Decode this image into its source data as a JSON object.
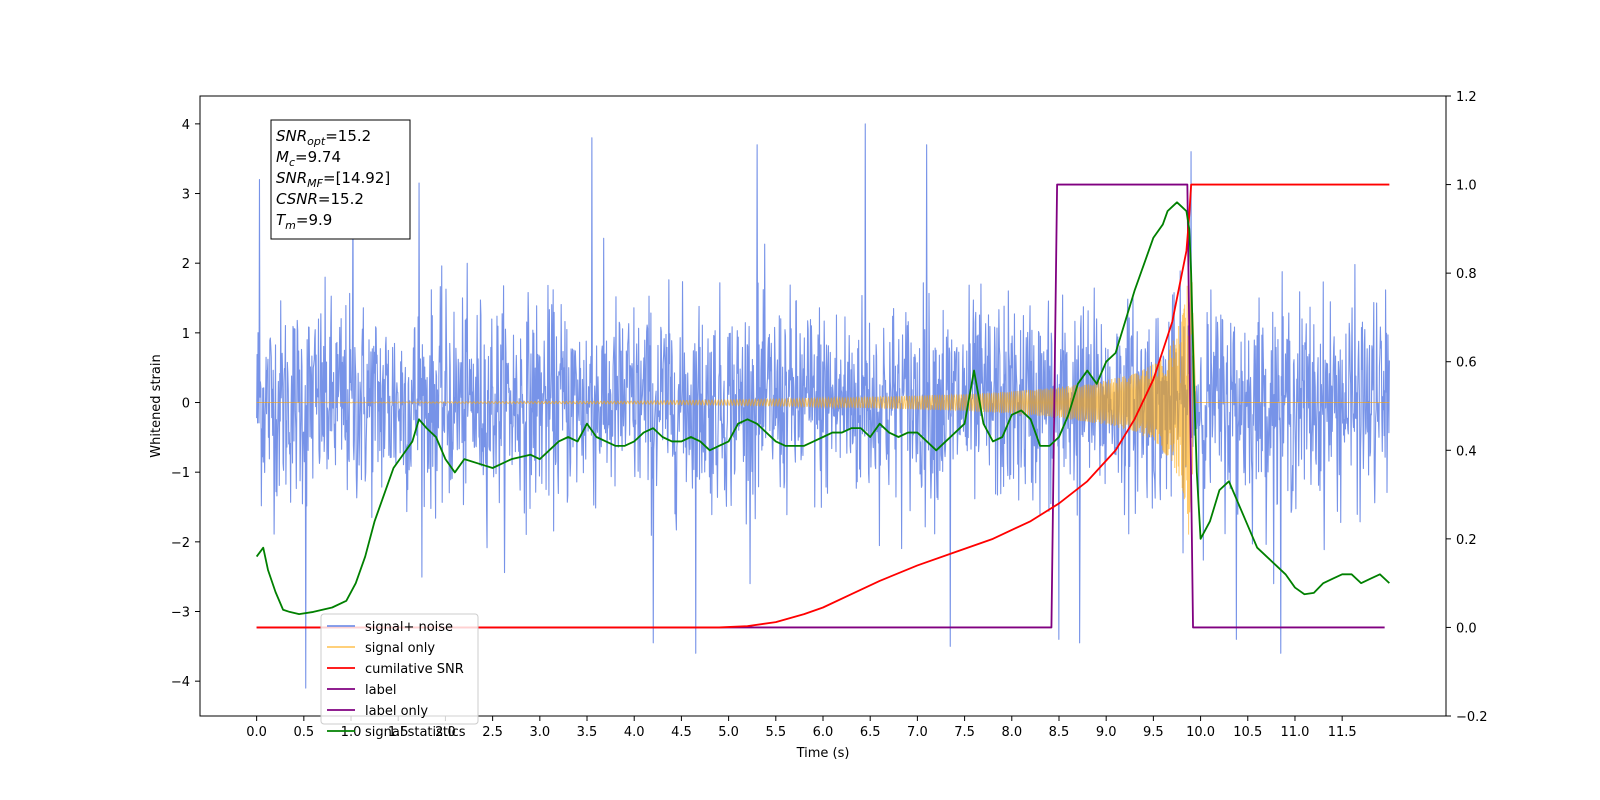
{
  "chart_data": {
    "type": "line",
    "xlabel": "Time (s)",
    "ylabel_left": "Whitened strain",
    "ylabel_right": "",
    "xlim": [
      -0.6,
      12.6
    ],
    "ylim_left": [
      -4.5,
      4.4
    ],
    "ylim_right": [
      -0.2,
      1.2
    ],
    "x_ticks": [
      0.0,
      0.5,
      1.0,
      1.5,
      2.0,
      2.5,
      3.0,
      3.5,
      4.0,
      4.5,
      5.0,
      5.5,
      6.0,
      6.5,
      7.0,
      7.5,
      8.0,
      8.5,
      9.0,
      9.5,
      10.0,
      10.5,
      11.0,
      11.5
    ],
    "x_tick_labels": [
      "0.0",
      "0.5",
      "1.0",
      "1.5",
      "2.0",
      "2.5",
      "3.0",
      "3.5",
      "4.0",
      "4.5",
      "5.0",
      "5.5",
      "6.0",
      "6.5",
      "7.0",
      "7.5",
      "8.0",
      "8.5",
      "9.0",
      "9.5",
      "10.0",
      "10.5",
      "11.0",
      "11.5"
    ],
    "y_left_ticks": [
      -4,
      -3,
      -2,
      -1,
      0,
      1,
      2,
      3,
      4
    ],
    "y_left_tick_labels": [
      "−4",
      "−3",
      "−2",
      "−1",
      "0",
      "1",
      "2",
      "3",
      "4"
    ],
    "y_right_ticks": [
      -0.2,
      0.0,
      0.2,
      0.4,
      0.6,
      0.8,
      1.0,
      1.2
    ],
    "y_right_tick_labels": [
      "−0.2",
      "0.0",
      "0.2",
      "0.4",
      "0.6",
      "0.8",
      "1.0",
      "1.2"
    ],
    "grid": false,
    "legend_position": "lower-left",
    "annotation_lines": [
      {
        "base": "SNR",
        "sub": "opt",
        "rest": "=15.2"
      },
      {
        "base": "M",
        "sub": "c",
        "rest": "=9.74"
      },
      {
        "base": "SNR",
        "sub": "MF",
        "rest": "=[14.92]"
      },
      {
        "base": "CSNR",
        "sub": "",
        "rest": "=15.2"
      },
      {
        "base": "T",
        "sub": "m",
        "rest": "=9.9"
      }
    ],
    "series": [
      {
        "name": "signal+ noise",
        "axis": "left",
        "color": "#7793e8",
        "note": "dense noisy strain, roughly centered at 0",
        "x_range": [
          0.0,
          12.0
        ],
        "typical_band": [
          -1.6,
          1.6
        ],
        "peaks": [
          {
            "x": 0.03,
            "y": 3.2
          },
          {
            "x": 0.52,
            "y": -4.1
          },
          {
            "x": 1.02,
            "y": 3.15
          },
          {
            "x": 1.72,
            "y": 3.15
          },
          {
            "x": 3.55,
            "y": 3.8
          },
          {
            "x": 4.2,
            "y": -3.45
          },
          {
            "x": 4.65,
            "y": -3.6
          },
          {
            "x": 5.3,
            "y": 3.7
          },
          {
            "x": 6.45,
            "y": 4.0
          },
          {
            "x": 7.1,
            "y": 3.7
          },
          {
            "x": 7.35,
            "y": -3.5
          },
          {
            "x": 8.5,
            "y": -3.4
          },
          {
            "x": 8.72,
            "y": -3.45
          },
          {
            "x": 9.9,
            "y": 3.6
          },
          {
            "x": 10.38,
            "y": -3.4
          },
          {
            "x": 10.85,
            "y": -3.6
          }
        ]
      },
      {
        "name": "signal only",
        "axis": "left",
        "color": "#ffa500",
        "note": "inspiral chirp, amplitude envelope growing towards merger then ringdown to zero",
        "envelope": {
          "x": [
            0.0,
            4.0,
            5.5,
            6.5,
            7.5,
            8.0,
            8.5,
            9.0,
            9.3,
            9.5,
            9.7,
            9.82,
            9.9,
            9.95,
            12.0
          ],
          "amplitude": [
            0.0,
            0.02,
            0.05,
            0.08,
            0.12,
            0.16,
            0.22,
            0.32,
            0.42,
            0.55,
            0.85,
            1.3,
            2.2,
            0.0,
            0.0
          ]
        }
      },
      {
        "name": "cumilative SNR",
        "axis": "right",
        "color": "#ff0000",
        "x": [
          0.0,
          4.9,
          5.2,
          5.5,
          5.8,
          6.0,
          6.3,
          6.6,
          7.0,
          7.4,
          7.8,
          8.2,
          8.5,
          8.8,
          9.1,
          9.3,
          9.5,
          9.7,
          9.85,
          9.88,
          9.9,
          9.91,
          12.0
        ],
        "y": [
          0.0,
          0.0,
          0.003,
          0.012,
          0.03,
          0.045,
          0.075,
          0.105,
          0.14,
          0.17,
          0.2,
          0.24,
          0.28,
          0.33,
          0.4,
          0.47,
          0.56,
          0.69,
          0.85,
          0.93,
          1.0,
          1.0,
          1.0
        ]
      },
      {
        "name": "label",
        "axis": "right",
        "color": "#800080",
        "x": [
          0.0,
          8.42,
          8.48,
          9.86,
          9.92,
          11.95
        ],
        "y": [
          0.0,
          0.0,
          1.0,
          1.0,
          0.0,
          0.0
        ]
      },
      {
        "name": "label only",
        "axis": "right",
        "color": "#800080",
        "note": "legend entry only, hidden behind the 'label' line",
        "x": [],
        "y": []
      },
      {
        "name": "signal statistics",
        "axis": "right",
        "color": "#008000",
        "x": [
          0.0,
          0.07,
          0.12,
          0.2,
          0.28,
          0.35,
          0.45,
          0.6,
          0.8,
          0.95,
          1.05,
          1.15,
          1.25,
          1.35,
          1.45,
          1.55,
          1.65,
          1.72,
          1.8,
          1.9,
          2.0,
          2.1,
          2.2,
          2.35,
          2.5,
          2.7,
          2.9,
          3.0,
          3.1,
          3.2,
          3.3,
          3.4,
          3.5,
          3.6,
          3.7,
          3.8,
          3.9,
          4.0,
          4.1,
          4.2,
          4.3,
          4.4,
          4.5,
          4.6,
          4.7,
          4.8,
          4.9,
          5.0,
          5.1,
          5.2,
          5.3,
          5.4,
          5.5,
          5.6,
          5.7,
          5.8,
          5.9,
          6.0,
          6.1,
          6.2,
          6.3,
          6.4,
          6.5,
          6.6,
          6.7,
          6.8,
          6.9,
          7.0,
          7.1,
          7.2,
          7.3,
          7.4,
          7.5,
          7.55,
          7.6,
          7.65,
          7.7,
          7.8,
          7.9,
          8.0,
          8.1,
          8.2,
          8.3,
          8.4,
          8.5,
          8.6,
          8.7,
          8.8,
          8.9,
          9.0,
          9.1,
          9.2,
          9.3,
          9.4,
          9.5,
          9.6,
          9.65,
          9.7,
          9.75,
          9.8,
          9.85,
          9.88,
          9.9,
          9.93,
          9.96,
          10.0,
          10.1,
          10.2,
          10.3,
          10.4,
          10.5,
          10.6,
          10.7,
          10.8,
          10.9,
          11.0,
          11.1,
          11.2,
          11.3,
          11.4,
          11.5,
          11.6,
          11.7,
          11.8,
          11.9,
          12.0
        ],
        "y": [
          0.16,
          0.18,
          0.13,
          0.08,
          0.04,
          0.035,
          0.03,
          0.035,
          0.045,
          0.06,
          0.1,
          0.16,
          0.24,
          0.3,
          0.36,
          0.39,
          0.42,
          0.47,
          0.45,
          0.43,
          0.38,
          0.35,
          0.38,
          0.37,
          0.36,
          0.38,
          0.39,
          0.38,
          0.4,
          0.42,
          0.43,
          0.42,
          0.46,
          0.43,
          0.42,
          0.41,
          0.41,
          0.42,
          0.44,
          0.45,
          0.43,
          0.42,
          0.42,
          0.43,
          0.42,
          0.4,
          0.41,
          0.42,
          0.46,
          0.47,
          0.46,
          0.44,
          0.42,
          0.41,
          0.41,
          0.41,
          0.42,
          0.43,
          0.44,
          0.44,
          0.45,
          0.45,
          0.43,
          0.46,
          0.44,
          0.43,
          0.44,
          0.44,
          0.42,
          0.4,
          0.42,
          0.44,
          0.46,
          0.52,
          0.58,
          0.52,
          0.46,
          0.42,
          0.43,
          0.48,
          0.49,
          0.47,
          0.41,
          0.41,
          0.43,
          0.48,
          0.55,
          0.58,
          0.55,
          0.6,
          0.62,
          0.69,
          0.76,
          0.82,
          0.88,
          0.91,
          0.94,
          0.95,
          0.96,
          0.95,
          0.94,
          0.9,
          0.8,
          0.55,
          0.35,
          0.2,
          0.24,
          0.31,
          0.33,
          0.28,
          0.23,
          0.18,
          0.16,
          0.14,
          0.12,
          0.09,
          0.075,
          0.078,
          0.1,
          0.11,
          0.12,
          0.12,
          0.1,
          0.11,
          0.12,
          0.1
        ]
      }
    ]
  }
}
